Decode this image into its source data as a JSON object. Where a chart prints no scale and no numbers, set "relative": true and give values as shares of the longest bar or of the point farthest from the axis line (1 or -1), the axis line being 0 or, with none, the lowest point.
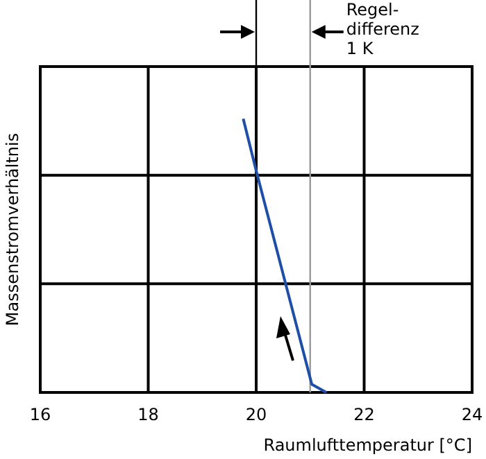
{
  "chart_data": {
    "type": "line",
    "xlabel": "Raumlufttemperatur [°C]",
    "ylabel": "Massenstromverhältnis",
    "relative": true,
    "xlim": [
      16,
      24
    ],
    "xticks": [
      16,
      18,
      20,
      22,
      24
    ],
    "grid": true,
    "marker": "none",
    "line_style": "solid",
    "series": [
      {
        "color": "#1f4ea6",
        "x": [
          19.76,
          20,
          21.03,
          21.3
        ],
        "values": [
          1,
          0.81,
          0.03,
          0
        ]
      }
    ],
    "ref_lines": [
      {
        "axis": "x",
        "value": 20,
        "label": null,
        "color": "#000000"
      },
      {
        "axis": "x",
        "value": 21,
        "label": "Regel-\ndifferenz\n1 K",
        "color": "#999999"
      }
    ]
  }
}
